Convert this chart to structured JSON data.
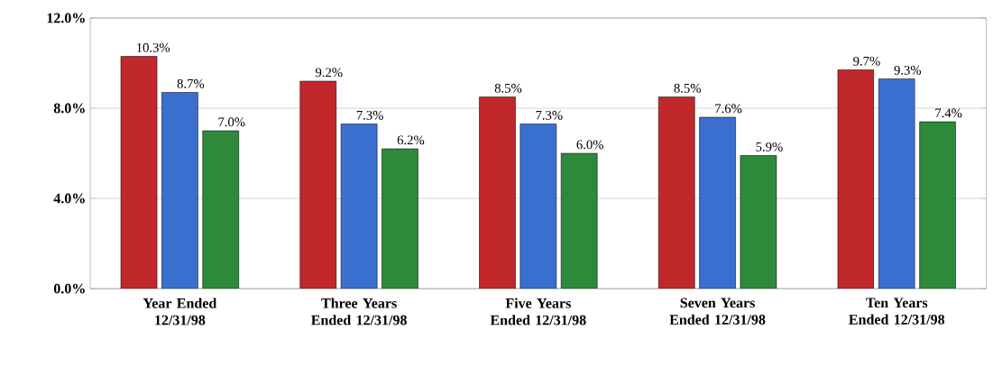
{
  "chart_data": {
    "type": "bar",
    "categories": [
      "Year Ended 12/31/98",
      "Three Years Ended 12/31/98",
      "Five Years Ended 12/31/98",
      "Seven Years Ended 12/31/98",
      "Ten Years Ended 12/31/98"
    ],
    "series": [
      {
        "color": "#c0282c",
        "values": [
          10.3,
          9.2,
          8.5,
          8.5,
          9.7
        ],
        "value_labels": [
          "10.3%",
          "9.2%",
          "8.5%",
          "8.5%",
          "9.7%"
        ]
      },
      {
        "color": "#3a6fd0",
        "values": [
          8.7,
          7.3,
          7.3,
          7.6,
          9.3
        ],
        "value_labels": [
          "8.7%",
          "7.3%",
          "7.3%",
          "7.6%",
          "9.3%"
        ]
      },
      {
        "color": "#2e8a3a",
        "values": [
          7.0,
          6.2,
          6.0,
          5.9,
          7.4
        ],
        "value_labels": [
          "7.0%",
          "6.2%",
          "6.0%",
          "5.9%",
          "7.4%"
        ]
      }
    ],
    "ylim": [
      0,
      12
    ],
    "yticks": [
      {
        "value": 0,
        "label": "0.0%"
      },
      {
        "value": 4,
        "label": "4.0%"
      },
      {
        "value": 8,
        "label": "8.0%"
      },
      {
        "value": 12,
        "label": "12.0%"
      }
    ],
    "grid": "y"
  }
}
